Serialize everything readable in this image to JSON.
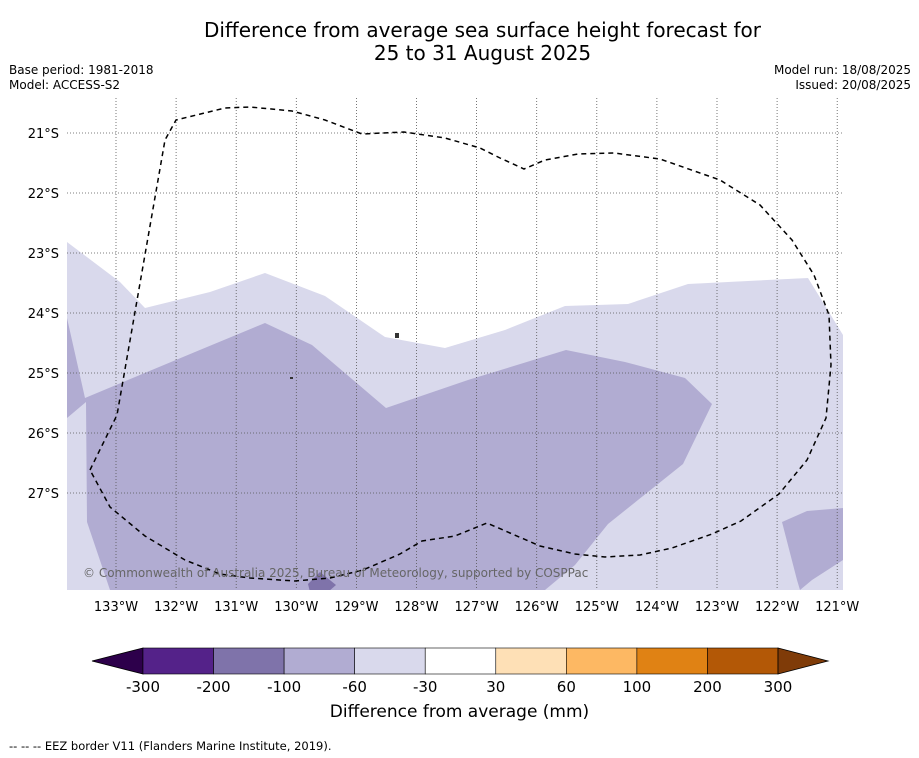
{
  "header": {
    "title_line1": "Difference from average sea surface height forecast for",
    "title_line2": "25 to 31 August 2025",
    "base_period": "Base period: 1981-2018",
    "model": "Model: ACCESS-S2",
    "model_run": "Model run: 18/08/2025",
    "issued": "Issued: 20/08/2025"
  },
  "map": {
    "copyright": "© Commonwealth of Australia 2025, Bureau of Meteorology, supported by COSPPac",
    "lon_labels": [
      "133°W",
      "132°W",
      "131°W",
      "130°W",
      "129°W",
      "128°W",
      "127°W",
      "126°W",
      "125°W",
      "124°W",
      "123°W",
      "122°W",
      "121°W"
    ],
    "lat_labels": [
      "21°S",
      "22°S",
      "23°S",
      "24°S",
      "25°S",
      "26°S",
      "27°S"
    ]
  },
  "chart_data": {
    "type": "heatmap",
    "title": "Difference from average sea surface height forecast for 25 to 31 August 2025",
    "units": "mm",
    "colorbar": {
      "label": "Difference from average (mm)",
      "tick_labels": [
        "-300",
        "-200",
        "-100",
        "-60",
        "-30",
        "30",
        "60",
        "100",
        "200",
        "300"
      ],
      "bins": [
        {
          "range": [
            -300,
            -200
          ],
          "color": "#542289"
        },
        {
          "range": [
            -200,
            -100
          ],
          "color": "#7f73aa"
        },
        {
          "range": [
            -100,
            -60
          ],
          "color": "#b1acd2"
        },
        {
          "range": [
            -60,
            -30
          ],
          "color": "#d9d9ec"
        },
        {
          "range": [
            -30,
            30
          ],
          "color": "#ffffff"
        },
        {
          "range": [
            30,
            60
          ],
          "color": "#fee0b6"
        },
        {
          "range": [
            60,
            100
          ],
          "color": "#fdb863"
        },
        {
          "range": [
            100,
            200
          ],
          "color": "#e08214"
        },
        {
          "range": [
            200,
            300
          ],
          "color": "#b35806"
        }
      ],
      "under_color": "#2d004b",
      "over_color": "#7f3b08"
    },
    "lon_range": [
      -133.8,
      -121.0
    ],
    "lat_range": [
      -28.6,
      -20.6
    ],
    "grid": true
  },
  "footnote": "-- -- -- EEZ border V11 (Flanders Marine Institute, 2019)."
}
